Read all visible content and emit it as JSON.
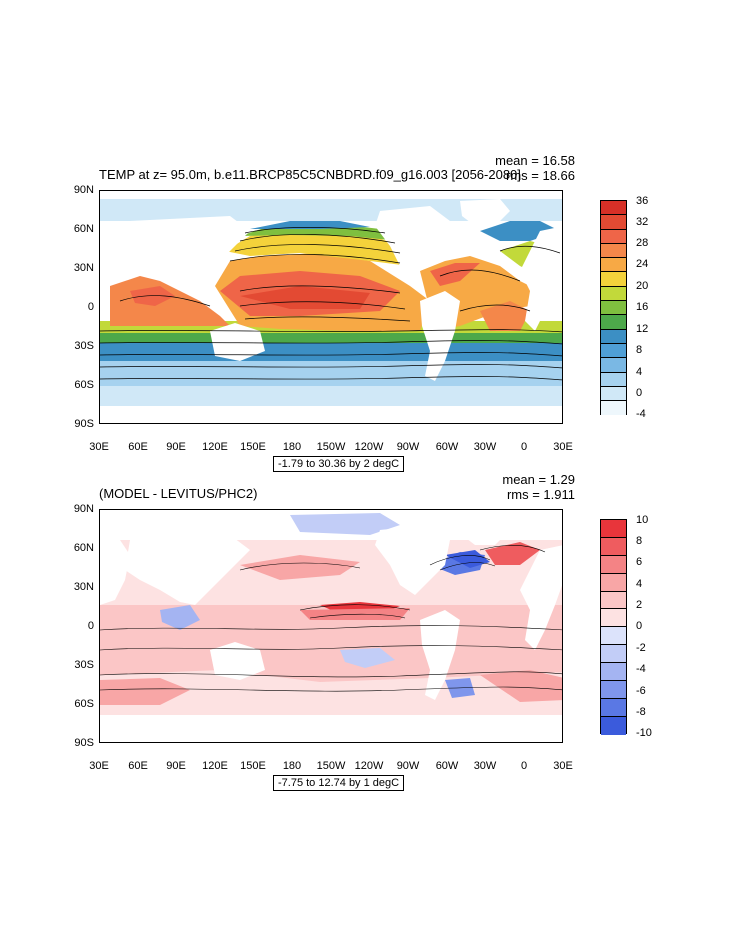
{
  "panels": [
    {
      "title": "TEMP at z=  95.0m, b.e11.BRCP85C5CNBDRD.f09_g16.003 [2056-2080]",
      "mean_label": "mean = 16.58",
      "rms_label": "rms = 18.66",
      "range_label": "-1.79 to 30.36 by 2 degC",
      "lat_labels": [
        "90N",
        "60N",
        "30N",
        "0",
        "30S",
        "60S",
        "90S"
      ],
      "lon_labels": [
        "30E",
        "60E",
        "90E",
        "120E",
        "150E",
        "180",
        "150W",
        "120W",
        "90W",
        "60W",
        "30W",
        "0",
        "30E"
      ],
      "legend_labels": [
        "36",
        "32",
        "28",
        "24",
        "20",
        "16",
        "12",
        "8",
        "4",
        "0",
        "-4"
      ],
      "legend_colors": [
        "#d73027",
        "#e34a33",
        "#ef6548",
        "#f4874a",
        "#f7a945",
        "#f4d23b",
        "#c2d93a",
        "#7fbf3f",
        "#4da84a",
        "#3c8fc4",
        "#4f9fd6",
        "#7ab8e4",
        "#a6d2ef",
        "#d0e8f7",
        "#eef7fc"
      ]
    },
    {
      "title": "(MODEL - LEVITUS/PHC2)",
      "mean_label": "mean = 1.29",
      "rms_label": "rms = 1.911",
      "range_label": "-7.75 to 12.74 by 1 degC",
      "lat_labels": [
        "90N",
        "60N",
        "30N",
        "0",
        "30S",
        "60S",
        "90S"
      ],
      "lon_labels": [
        "30E",
        "60E",
        "90E",
        "120E",
        "150E",
        "180",
        "150W",
        "120W",
        "90W",
        "60W",
        "30W",
        "0",
        "30E"
      ],
      "legend_labels": [
        "10",
        "8",
        "6",
        "4",
        "2",
        "0",
        "-2",
        "-4",
        "-6",
        "-8",
        "-10"
      ],
      "legend_colors": [
        "#e8353b",
        "#ef5c5f",
        "#f48385",
        "#f8a6a6",
        "#fbc6c6",
        "#fde2e2",
        "#dce3fb",
        "#c2cdf7",
        "#a4b4f2",
        "#7f96ec",
        "#5a78e4",
        "#3b5bdc"
      ]
    }
  ]
}
